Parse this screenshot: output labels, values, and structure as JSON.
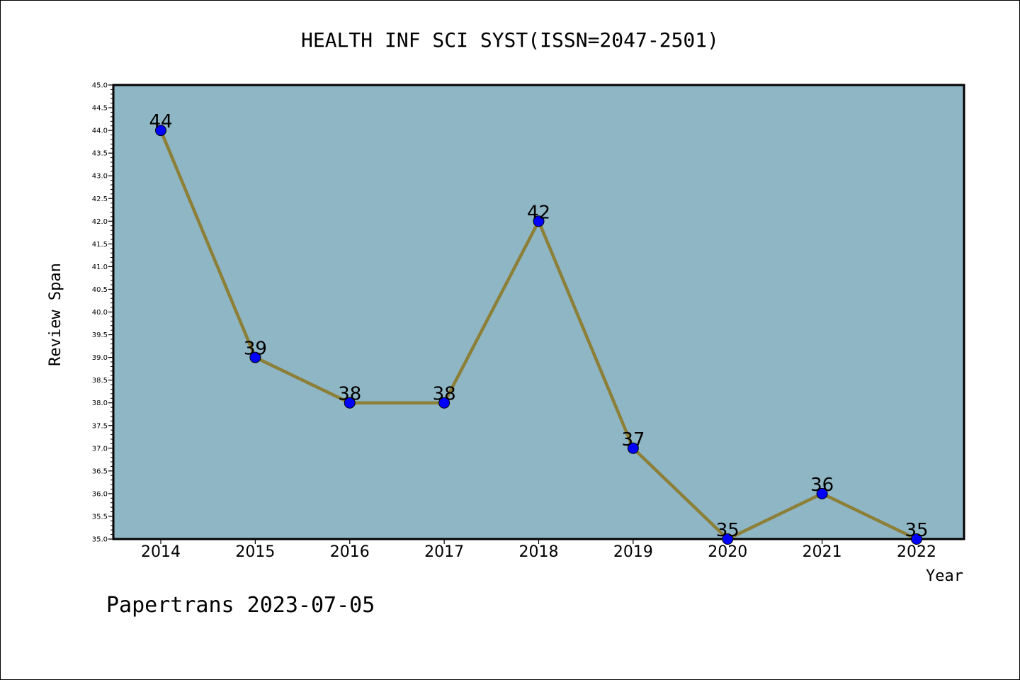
{
  "chart_data": {
    "type": "line",
    "title": "HEALTH INF SCI SYST(ISSN=2047-2501)",
    "xlabel": "Year",
    "ylabel": "Review Span",
    "categories": [
      "2014",
      "2015",
      "2016",
      "2017",
      "2018",
      "2019",
      "2020",
      "2021",
      "2022"
    ],
    "series": [
      {
        "values": [
          44,
          39,
          38,
          38,
          42,
          37,
          35,
          36,
          35
        ]
      }
    ],
    "data_labels": [
      "44",
      "39",
      "38",
      "38",
      "42",
      "37",
      "35",
      "36",
      "35"
    ],
    "ylim": [
      35.0,
      45.0
    ],
    "y_ticks": [
      "35.0",
      "35.5",
      "36.0",
      "36.5",
      "37.0",
      "37.5",
      "38.0",
      "38.5",
      "39.0",
      "39.5",
      "40.0",
      "40.5",
      "41.0",
      "41.5",
      "42.0",
      "42.5",
      "43.0",
      "43.5",
      "44.0",
      "44.5",
      "45.0"
    ],
    "grid": false,
    "colors": {
      "plot_background": "#8fb6c5",
      "line": "#8c7f37",
      "marker": "#0000ff"
    }
  },
  "footer": {
    "watermark": "Papertrans 2023-07-05"
  }
}
